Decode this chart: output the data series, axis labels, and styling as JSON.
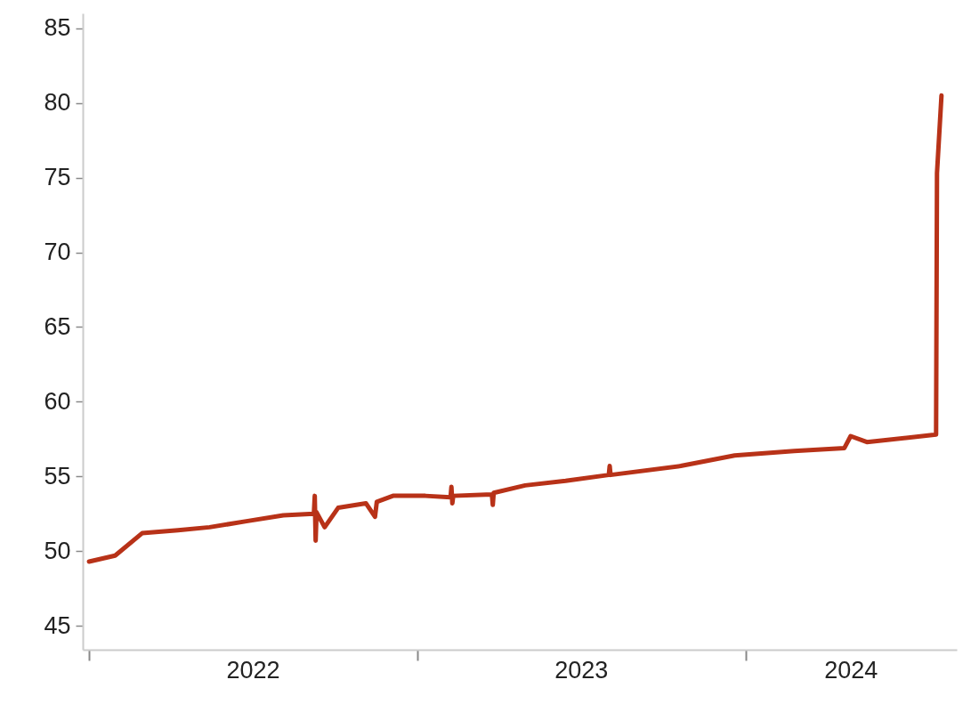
{
  "chart_data": {
    "type": "line",
    "x": [
      "2022-01-01",
      "2022-01-30",
      "2022-03-01",
      "2022-04-10",
      "2022-05-15",
      "2022-06-25",
      "2022-08-05",
      "2022-09-08",
      "2022-09-09",
      "2022-09-10",
      "2022-09-11",
      "2022-09-20",
      "2022-10-05",
      "2022-11-05",
      "2022-11-15",
      "2022-11-17",
      "2022-12-05",
      "2023-01-10",
      "2023-02-07",
      "2023-02-08",
      "2023-02-09",
      "2023-02-10",
      "2023-03-25",
      "2023-03-26",
      "2023-03-27",
      "2023-05-01",
      "2023-06-15",
      "2023-08-02",
      "2023-08-03",
      "2023-08-04",
      "2023-10-21",
      "2023-12-20",
      "2024-02-24",
      "2024-04-20",
      "2024-04-27",
      "2024-05-15",
      "2024-07-31",
      "2024-08-01",
      "2024-08-06"
    ],
    "series": [
      {
        "color": "#b83218",
        "values": [
          49.3,
          49.7,
          51.2,
          51.4,
          51.6,
          52.0,
          52.4,
          52.5,
          53.7,
          50.7,
          52.6,
          51.6,
          52.9,
          53.2,
          52.3,
          53.3,
          53.7,
          53.7,
          53.6,
          54.3,
          53.2,
          53.7,
          53.8,
          53.1,
          53.9,
          54.4,
          54.7,
          55.1,
          55.7,
          55.1,
          55.7,
          56.4,
          56.7,
          56.9,
          57.7,
          57.3,
          57.8,
          75.3,
          80.5
        ]
      }
    ],
    "xlim": [
      "2021-12-25",
      "2024-08-23"
    ],
    "xticks": [
      {
        "value": "2022-01-01",
        "label": null
      },
      {
        "value": "2022-07-02",
        "label": "2022"
      },
      {
        "value": "2023-01-01",
        "label": null
      },
      {
        "value": "2023-07-02",
        "label": "2023"
      },
      {
        "value": "2024-01-01",
        "label": null
      },
      {
        "value": "2024-04-27",
        "label": "2024"
      }
    ],
    "ylim": [
      43.4,
      86
    ],
    "yticks": [
      45,
      50,
      55,
      60,
      65,
      70,
      75,
      80,
      85
    ],
    "grid": false,
    "line_style": "solid",
    "marker": "none"
  }
}
